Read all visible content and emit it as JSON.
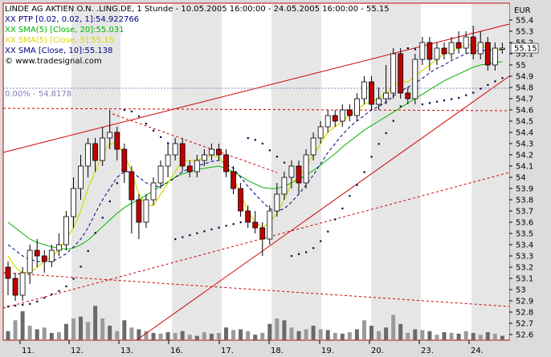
{
  "title": "LINDE AG AKTIEN O.N. .LING.DE, 1 Stunde - 10.05.2005 16:00:00 - 24.05.2005 16:00:00 - 55.15",
  "currency": "EUR",
  "legend": [
    {
      "text": "XX PTP [0.02, 0.02, 1]:54.922766",
      "color": "#000080"
    },
    {
      "text": "XX SMA(5) [Close, 20]:55.031",
      "color": "#00b400"
    },
    {
      "text": "XX SMA(5) [Close, 5]:55.15",
      "color": "#d8d800"
    },
    {
      "text": "XX SMA [Close, 10]:55.138",
      "color": "#000080"
    }
  ],
  "watermark": "www.tradesignal.com",
  "retracement_label": "0.00% - 54.8178",
  "chart_data": {
    "type": "candlestick",
    "ylim": [
      52.55,
      55.55
    ],
    "yticks": [
      52.6,
      52.7,
      52.8,
      52.9,
      53,
      53.1,
      53.2,
      53.3,
      53.4,
      53.5,
      53.6,
      53.7,
      53.8,
      53.9,
      54,
      54.1,
      54.2,
      54.3,
      54.4,
      54.5,
      54.6,
      54.7,
      54.8,
      54.9,
      55,
      55.1,
      55.2,
      55.3,
      55.4
    ],
    "last_price_label": "55.15",
    "day_labels": [
      "11.",
      "12.",
      "13.",
      "16.",
      "17.",
      "18.",
      "19.",
      "20.",
      "23.",
      "24."
    ],
    "candles": [
      [
        53.2,
        53.1,
        53.25,
        52.95
      ],
      [
        53.1,
        52.95,
        53.15,
        52.9
      ],
      [
        52.95,
        53.15,
        53.2,
        52.9
      ],
      [
        53.15,
        53.35,
        53.4,
        53.05
      ],
      [
        53.35,
        53.3,
        53.45,
        53.2
      ],
      [
        53.3,
        53.25,
        53.35,
        53.15
      ],
      [
        53.25,
        53.35,
        53.4,
        53.2
      ],
      [
        53.35,
        53.4,
        53.5,
        53.3
      ],
      [
        53.4,
        53.65,
        53.7,
        53.35
      ],
      [
        53.65,
        53.9,
        54.0,
        53.55
      ],
      [
        53.9,
        54.1,
        54.2,
        53.8
      ],
      [
        54.1,
        54.3,
        54.35,
        54.0
      ],
      [
        54.3,
        54.15,
        54.35,
        54.05
      ],
      [
        54.15,
        54.35,
        54.45,
        54.1
      ],
      [
        54.35,
        54.4,
        54.6,
        54.25
      ],
      [
        54.4,
        54.25,
        54.45,
        54.15
      ],
      [
        54.25,
        54.05,
        54.3,
        53.95
      ],
      [
        54.05,
        53.8,
        54.1,
        53.5
      ],
      [
        53.8,
        53.6,
        53.85,
        53.45
      ],
      [
        53.6,
        53.8,
        53.85,
        53.55
      ],
      [
        53.8,
        53.95,
        54.0,
        53.75
      ],
      [
        53.95,
        54.1,
        54.15,
        53.9
      ],
      [
        54.1,
        54.2,
        54.3,
        54.0
      ],
      [
        54.2,
        54.3,
        54.35,
        54.15
      ],
      [
        54.3,
        54.1,
        54.35,
        54.05
      ],
      [
        54.1,
        54.05,
        54.15,
        54.0
      ],
      [
        54.05,
        54.15,
        54.2,
        54.0
      ],
      [
        54.15,
        54.2,
        54.25,
        54.1
      ],
      [
        54.2,
        54.25,
        54.3,
        54.15
      ],
      [
        54.25,
        54.2,
        54.3,
        54.15
      ],
      [
        54.2,
        54.05,
        54.25,
        54.0
      ],
      [
        54.05,
        53.9,
        54.1,
        53.85
      ],
      [
        53.9,
        53.7,
        53.95,
        53.65
      ],
      [
        53.7,
        53.6,
        53.75,
        53.55
      ],
      [
        53.6,
        53.55,
        53.7,
        53.5
      ],
      [
        53.55,
        53.45,
        53.6,
        53.3
      ],
      [
        53.45,
        53.7,
        53.75,
        53.4
      ],
      [
        53.7,
        53.85,
        53.95,
        53.65
      ],
      [
        53.85,
        54.0,
        54.05,
        53.8
      ],
      [
        54.0,
        54.1,
        54.15,
        53.9
      ],
      [
        54.1,
        53.95,
        54.15,
        53.85
      ],
      [
        53.95,
        54.2,
        54.25,
        53.9
      ],
      [
        54.2,
        54.35,
        54.4,
        54.15
      ],
      [
        54.35,
        54.45,
        54.5,
        54.3
      ],
      [
        54.45,
        54.55,
        54.6,
        54.4
      ],
      [
        54.55,
        54.5,
        54.6,
        54.45
      ],
      [
        54.5,
        54.6,
        54.65,
        54.45
      ],
      [
        54.6,
        54.55,
        54.65,
        54.5
      ],
      [
        54.55,
        54.7,
        54.75,
        54.5
      ],
      [
        54.7,
        54.85,
        54.9,
        54.65
      ],
      [
        54.85,
        54.65,
        54.9,
        54.6
      ],
      [
        54.65,
        54.7,
        54.8,
        54.6
      ],
      [
        54.7,
        54.75,
        55.0,
        54.65
      ],
      [
        54.75,
        55.1,
        55.15,
        54.7
      ],
      [
        55.1,
        54.75,
        55.15,
        54.7
      ],
      [
        54.75,
        54.7,
        54.8,
        54.65
      ],
      [
        54.7,
        55.05,
        55.1,
        54.65
      ],
      [
        55.05,
        55.2,
        55.25,
        55.0
      ],
      [
        55.2,
        55.05,
        55.25,
        54.95
      ],
      [
        55.05,
        55.15,
        55.2,
        55.0
      ],
      [
        55.15,
        55.1,
        55.2,
        55.05
      ],
      [
        55.1,
        55.2,
        55.25,
        55.05
      ],
      [
        55.2,
        55.15,
        55.3,
        55.1
      ],
      [
        55.15,
        55.25,
        55.3,
        55.1
      ],
      [
        55.25,
        55.1,
        55.35,
        55.05
      ],
      [
        55.1,
        55.2,
        55.3,
        55.05
      ],
      [
        55.2,
        55.0,
        55.25,
        54.95
      ],
      [
        55.0,
        55.15,
        55.2,
        54.95
      ],
      [
        55.15,
        55.15,
        55.2,
        55.1
      ]
    ],
    "volumes": [
      25,
      55,
      80,
      40,
      30,
      35,
      20,
      22,
      45,
      60,
      65,
      50,
      95,
      60,
      40,
      25,
      55,
      35,
      30,
      25,
      20,
      18,
      22,
      20,
      25,
      15,
      12,
      22,
      18,
      20,
      35,
      28,
      30,
      25,
      15,
      20,
      45,
      60,
      55,
      35,
      25,
      30,
      40,
      30,
      28,
      20,
      18,
      22,
      30,
      55,
      40,
      25,
      35,
      70,
      45,
      20,
      30,
      28,
      25,
      15,
      22,
      20,
      18,
      25,
      20,
      15,
      22,
      18,
      12
    ],
    "sma5": [
      53.3,
      53.2,
      53.15,
      53.15,
      53.2,
      53.25,
      53.3,
      53.35,
      53.45,
      53.55,
      53.7,
      53.9,
      54.05,
      54.2,
      54.3,
      54.3,
      54.2,
      54.05,
      53.85,
      53.75,
      53.75,
      53.85,
      53.95,
      54.05,
      54.15,
      54.15,
      54.15,
      54.18,
      54.2,
      54.18,
      54.1,
      54.0,
      53.85,
      53.7,
      53.6,
      53.55,
      53.6,
      53.68,
      53.8,
      53.95,
      54.0,
      54.1,
      54.2,
      54.3,
      54.4,
      54.45,
      54.5,
      54.55,
      54.6,
      54.65,
      54.68,
      54.7,
      54.75,
      54.8,
      54.85,
      54.85,
      54.9,
      54.95,
      55.0,
      55.05,
      55.1,
      55.12,
      55.15,
      55.18,
      55.18,
      55.17,
      55.15,
      55.13,
      55.15
    ],
    "sma10": [
      53.4,
      53.35,
      53.3,
      53.27,
      53.25,
      53.25,
      53.25,
      53.28,
      53.32,
      53.38,
      53.45,
      53.55,
      53.68,
      53.8,
      53.9,
      54.0,
      54.05,
      54.05,
      54.0,
      53.95,
      53.92,
      53.92,
      53.95,
      54.0,
      54.05,
      54.08,
      54.1,
      54.12,
      54.14,
      54.15,
      54.12,
      54.08,
      54.0,
      53.92,
      53.85,
      53.78,
      53.72,
      53.7,
      53.72,
      53.78,
      53.85,
      53.93,
      54.02,
      54.12,
      54.22,
      54.3,
      54.38,
      54.45,
      54.5,
      54.55,
      54.6,
      54.63,
      54.67,
      54.72,
      54.77,
      54.8,
      54.84,
      54.88,
      54.93,
      54.97,
      55.0,
      55.04,
      55.07,
      55.1,
      55.12,
      55.13,
      55.13,
      55.13,
      55.138
    ],
    "sma20": [
      53.6,
      53.55,
      53.5,
      53.45,
      53.42,
      53.4,
      53.38,
      53.37,
      53.36,
      53.37,
      53.4,
      53.44,
      53.5,
      53.56,
      53.62,
      53.68,
      53.73,
      53.77,
      53.8,
      53.84,
      53.88,
      53.92,
      53.96,
      54.0,
      54.03,
      54.05,
      54.07,
      54.08,
      54.09,
      54.1,
      54.08,
      54.05,
      54.01,
      53.97,
      53.94,
      53.91,
      53.9,
      53.9,
      53.92,
      53.95,
      53.98,
      54.02,
      54.06,
      54.11,
      54.16,
      54.21,
      54.27,
      54.32,
      54.37,
      54.42,
      54.46,
      54.5,
      54.54,
      54.58,
      54.62,
      54.66,
      54.7,
      54.74,
      54.78,
      54.82,
      54.86,
      54.89,
      54.92,
      54.95,
      54.98,
      55.0,
      55.01,
      55.02,
      55.031
    ]
  }
}
